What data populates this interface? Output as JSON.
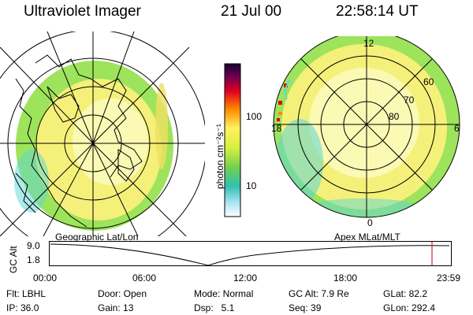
{
  "header": {
    "instrument": "Ultraviolet Imager",
    "date": "21 Jul 00",
    "time": "22:58:14 UT"
  },
  "left_map": {
    "caption": "Geographic Lat/Lon"
  },
  "colorbar": {
    "label": "photon cm⁻²s⁻¹",
    "tick_100": "100",
    "tick_10": "10"
  },
  "right_map": {
    "caption": "Apex MLat/MLT",
    "mlt_12": "12",
    "mlt_18": "18",
    "mlt_6": "6",
    "mlt_0": "0",
    "mlat_60": "60",
    "mlat_70": "70",
    "mlat_80": "80"
  },
  "orbit_plot": {
    "ylabel": "GC Alt",
    "y_top": "9.0",
    "y_bottom": "1.8",
    "x_ticks": [
      "00:00",
      "06:00",
      "12:00",
      "18:00",
      "23:59"
    ]
  },
  "status": {
    "flt": "Flt: LBHL",
    "door": "Door: Open",
    "mode": "Mode: Normal",
    "gc_alt": "GC Alt: 7.9 Re",
    "glat": "GLat: 82.2",
    "ip": "IP: 36.0",
    "gain": "Gain: 13",
    "dsp": "Dsp:   5.1",
    "seq": "Seq: 39",
    "glon": "GLon: 292.4"
  },
  "colors": {
    "yellow": "#f5f07a",
    "lightyellow": "#fafab4",
    "green": "#9ee35c",
    "cyan": "#5bd6d6",
    "red": "#e00000"
  }
}
